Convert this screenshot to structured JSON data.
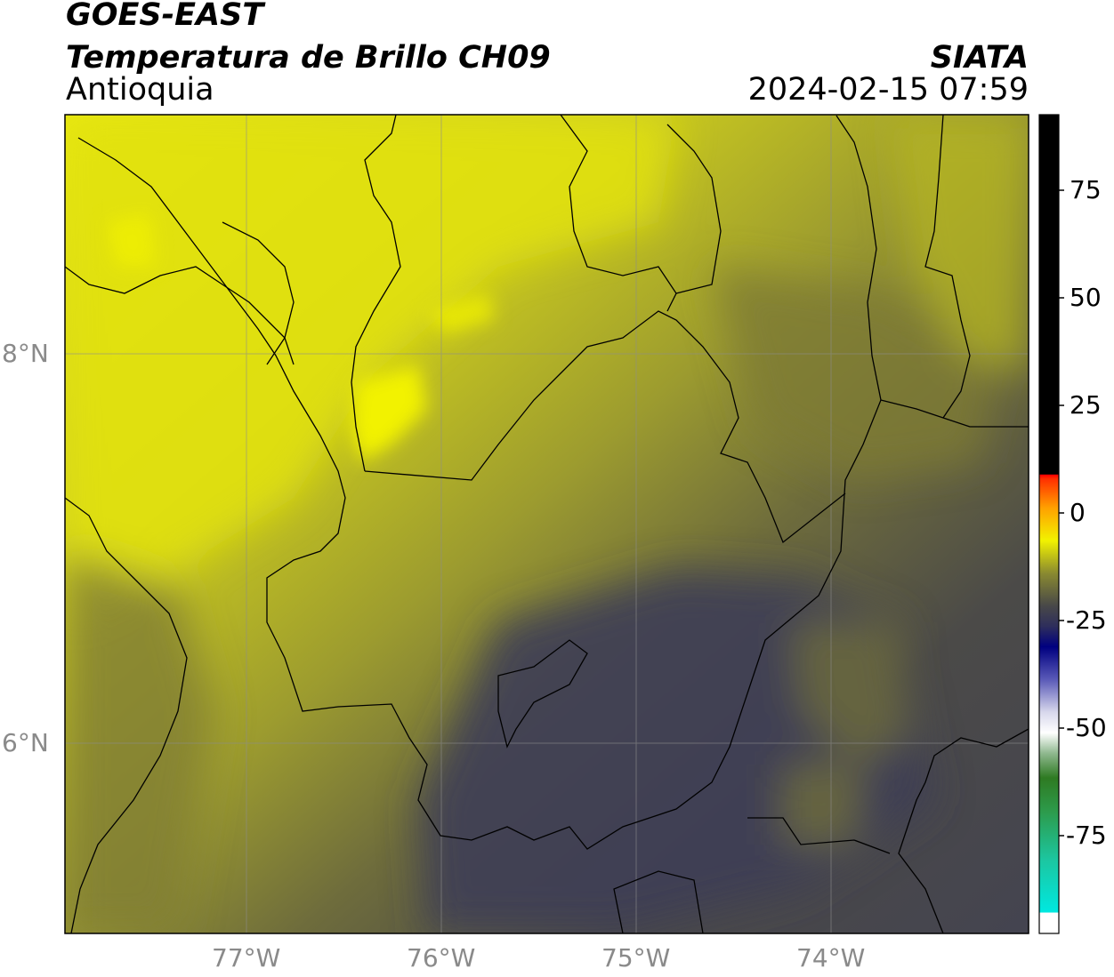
{
  "header": {
    "satellite": "GOES-EAST",
    "product": "Temperatura de Brillo CH09",
    "region": "Antioquia",
    "brand": "SIATA",
    "datetime": "2024-02-15 07:59"
  },
  "map": {
    "longitude_ticks": [
      "77°W",
      "76°W",
      "75°W",
      "74°W"
    ],
    "latitude_ticks": [
      "8°N",
      "6°N"
    ],
    "extent": {
      "lon": [
        -77.93,
        -73.0
      ],
      "lat": [
        5.06,
        9.27
      ]
    }
  },
  "colorbar": {
    "ticks": [
      "75",
      "50",
      "25",
      "0",
      "-25",
      "-50",
      "-75"
    ],
    "range": [
      -93,
      92
    ],
    "colors": {
      "black": "#000000",
      "red": "#ff2a00",
      "orange": "#ff9900",
      "yellow": "#f2f200",
      "dark_gray": "#484848",
      "navy": "#000080",
      "white": "#ffffff",
      "green": "#2e8b2e",
      "cyan": "#00e5e0"
    }
  }
}
